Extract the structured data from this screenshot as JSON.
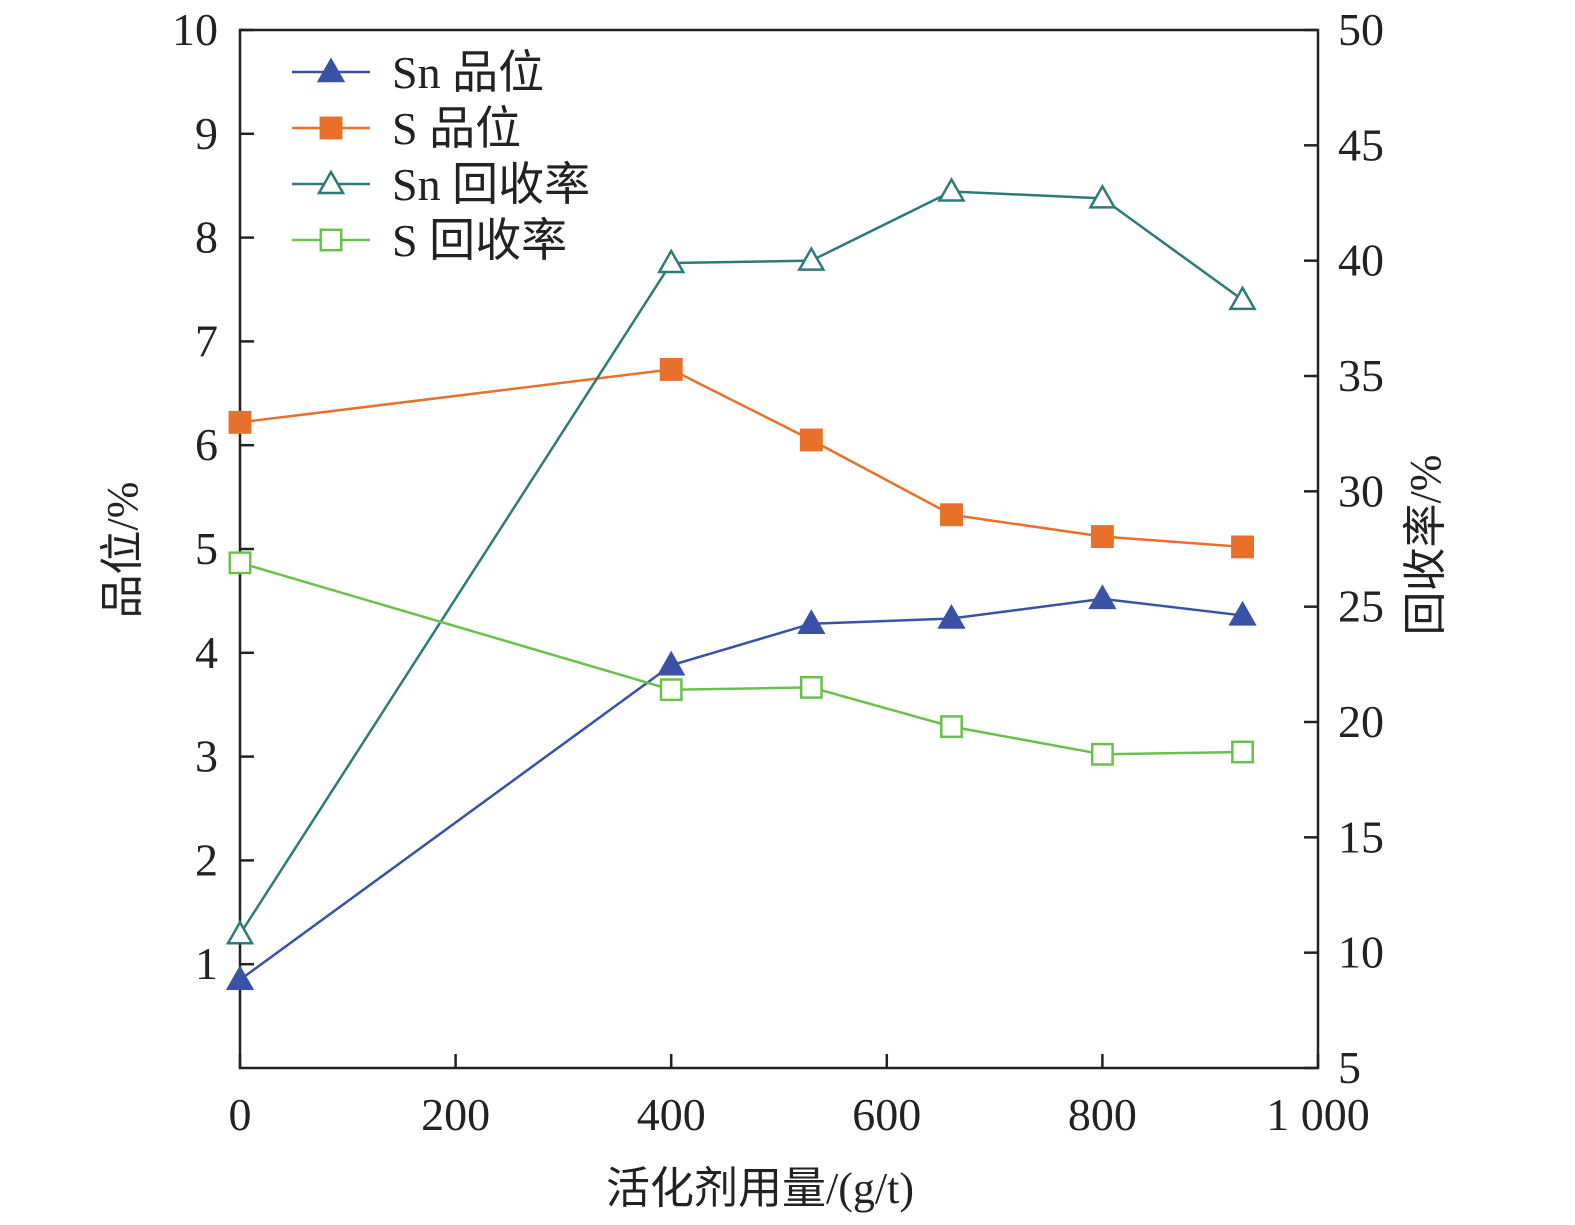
{
  "chart_data": {
    "type": "line",
    "xlabel": "活化剂用量/(g/t)",
    "ylabel_left": "品位/%",
    "ylabel_right": "回收率/%",
    "xlim": [
      0,
      1000
    ],
    "ylim_left": [
      0,
      10
    ],
    "ylim_right": [
      5,
      50
    ],
    "x_ticks": [
      0,
      200,
      400,
      600,
      800,
      1000
    ],
    "x_tick_labels": [
      "0",
      "200",
      "400",
      "600",
      "800",
      "1 000"
    ],
    "y_left_ticks": [
      1,
      2,
      3,
      4,
      5,
      6,
      7,
      8,
      9,
      10
    ],
    "y_left_tick_labels": [
      "1",
      "2",
      "3",
      "4",
      "5",
      "6",
      "7",
      "8",
      "9",
      "10"
    ],
    "y_right_ticks": [
      5,
      10,
      15,
      20,
      25,
      30,
      35,
      40,
      45,
      50
    ],
    "y_right_tick_labels": [
      "5",
      "10",
      "15",
      "20",
      "25",
      "30",
      "35",
      "40",
      "45",
      "50"
    ],
    "grid": false,
    "legend_position": "top-left",
    "x": [
      0,
      400,
      530,
      660,
      800,
      930
    ],
    "series": [
      {
        "name": "Sn 品位",
        "axis": "left",
        "marker": "triangle-filled",
        "color": "#3a52a6",
        "values": [
          0.85,
          3.88,
          4.28,
          4.33,
          4.52,
          4.36
        ]
      },
      {
        "name": "S 品位",
        "axis": "left",
        "marker": "square-filled",
        "color": "#e8702a",
        "values": [
          6.22,
          6.73,
          6.05,
          5.33,
          5.12,
          5.02
        ]
      },
      {
        "name": "Sn 回收率",
        "axis": "right",
        "marker": "triangle-open",
        "color": "#2e7a78",
        "values": [
          10.8,
          39.9,
          40.0,
          43.0,
          42.7,
          38.3
        ]
      },
      {
        "name": "S 回收率",
        "axis": "right",
        "marker": "square-open",
        "color": "#6cc04a",
        "values": [
          26.9,
          21.4,
          21.5,
          19.8,
          18.6,
          18.7
        ]
      }
    ]
  }
}
